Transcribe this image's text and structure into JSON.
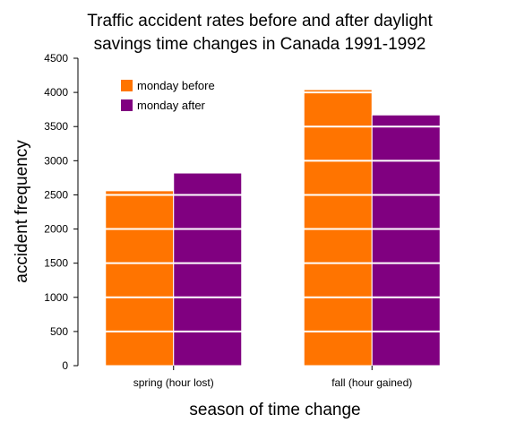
{
  "chart_data": {
    "type": "bar",
    "title_lines": [
      "Traffic accident rates before and after daylight",
      "savings time changes in Canada 1991-1992"
    ],
    "xlabel": "season of time change",
    "ylabel": "accident frequency",
    "categories": [
      "spring (hour lost)",
      "fall (hour gained)"
    ],
    "series": [
      {
        "name": "monday before",
        "color": "#ff7400",
        "values": [
          2560,
          4040
        ]
      },
      {
        "name": "monday after",
        "color": "#800080",
        "values": [
          2820,
          3670
        ]
      }
    ],
    "ylim": [
      0,
      4500
    ],
    "yticks": [
      "0",
      "500",
      "1000",
      "1500",
      "2000",
      "2500",
      "3000",
      "3500",
      "4000",
      "4500"
    ],
    "grid": "horizontal white lines over bars",
    "legend_position": "top-left"
  }
}
